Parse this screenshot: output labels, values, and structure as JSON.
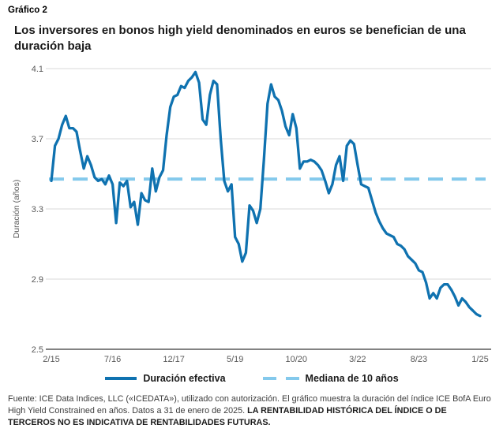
{
  "page": {
    "kicker": "Gráfico 2",
    "title": "Los inversores en bonos high yield denominados en euros se benefician de una duración baja"
  },
  "chart_data": {
    "type": "line",
    "ylabel": "Duración (años)",
    "ylim": [
      2.5,
      4.1
    ],
    "yticks": [
      2.5,
      2.9,
      3.3,
      3.7,
      4.1
    ],
    "grid": "horizontal",
    "legend_position": "bottom",
    "x_frequency": "monthly",
    "x_range": [
      "2/15",
      "1/25"
    ],
    "xticks": [
      {
        "label": "2/15",
        "index": 0
      },
      {
        "label": "7/16",
        "index": 17
      },
      {
        "label": "12/17",
        "index": 34
      },
      {
        "label": "5/19",
        "index": 51
      },
      {
        "label": "10/20",
        "index": 68
      },
      {
        "label": "3/22",
        "index": 85
      },
      {
        "label": "8/23",
        "index": 102
      },
      {
        "label": "1/25",
        "index": 119
      }
    ],
    "series": [
      {
        "name": "Duración efectiva",
        "style": "solid",
        "color": "#0f72b0",
        "values": [
          3.46,
          3.66,
          3.7,
          3.78,
          3.83,
          3.76,
          3.76,
          3.74,
          3.63,
          3.53,
          3.6,
          3.55,
          3.48,
          3.46,
          3.47,
          3.44,
          3.49,
          3.44,
          3.22,
          3.45,
          3.43,
          3.46,
          3.31,
          3.34,
          3.21,
          3.39,
          3.35,
          3.34,
          3.53,
          3.4,
          3.48,
          3.52,
          3.72,
          3.88,
          3.94,
          3.95,
          4.0,
          3.99,
          4.03,
          4.05,
          4.08,
          4.02,
          3.81,
          3.78,
          3.95,
          4.03,
          4.01,
          3.7,
          3.46,
          3.4,
          3.44,
          3.14,
          3.1,
          3.0,
          3.05,
          3.32,
          3.29,
          3.22,
          3.3,
          3.58,
          3.9,
          4.01,
          3.94,
          3.92,
          3.86,
          3.77,
          3.72,
          3.84,
          3.76,
          3.53,
          3.57,
          3.57,
          3.58,
          3.57,
          3.55,
          3.52,
          3.46,
          3.39,
          3.44,
          3.55,
          3.6,
          3.46,
          3.66,
          3.69,
          3.67,
          3.55,
          3.44,
          3.43,
          3.42,
          3.35,
          3.28,
          3.23,
          3.19,
          3.16,
          3.15,
          3.14,
          3.1,
          3.09,
          3.07,
          3.03,
          3.01,
          2.99,
          2.95,
          2.94,
          2.88,
          2.79,
          2.82,
          2.79,
          2.85,
          2.87,
          2.87,
          2.84,
          2.8,
          2.75,
          2.79,
          2.77,
          2.74,
          2.72,
          2.7,
          2.69
        ]
      },
      {
        "name": "Mediana de 10 años",
        "style": "dashed",
        "color": "#84c9ec",
        "constant_value": 3.47
      }
    ]
  },
  "legend": {
    "items": [
      {
        "label": "Duración efectiva"
      },
      {
        "label": "Mediana de 10 años"
      }
    ]
  },
  "footer": {
    "source": "Fuente: ICE Data Indices, LLC («ICEDATA»), utilizado con autorización. El gráfico muestra la duración del índice ICE BofA Euro High Yield Constrained en años. Datos a 31 de enero de 2025.",
    "disclaimer": "LA RENTABILIDAD HISTÓRICA DEL ÍNDICE O DE TERCEROS NO ES INDICATIVA DE RENTABILIDADES FUTURAS."
  },
  "colors": {
    "line": "#0f72b0",
    "median": "#84c9ec",
    "grid": "#d9d9d9",
    "axis": "#595959",
    "tick_text": "#595959"
  }
}
